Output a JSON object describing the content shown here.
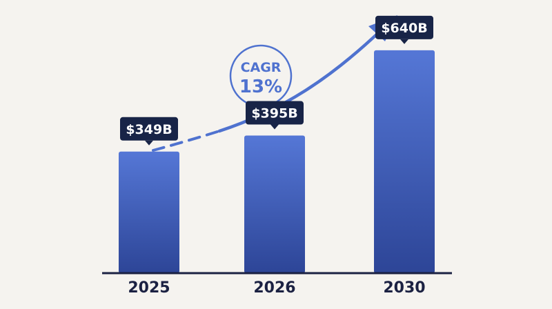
{
  "chart_data": {
    "type": "bar",
    "categories": [
      "2025",
      "2026",
      "2030"
    ],
    "values": [
      349,
      395,
      640
    ],
    "value_labels": [
      "$349B",
      "$395B",
      "$640B"
    ],
    "ylim": [
      0,
      705
    ],
    "grid": false,
    "colors": {
      "bar_top": "#5577d6",
      "bar_bottom": "#2d4597",
      "label_bg": "#182447",
      "trend": "#4f72cf",
      "axis": "#1b2142",
      "background": "#f5f3ef"
    },
    "annotation": {
      "title": "CAGR",
      "value": "13%"
    }
  }
}
